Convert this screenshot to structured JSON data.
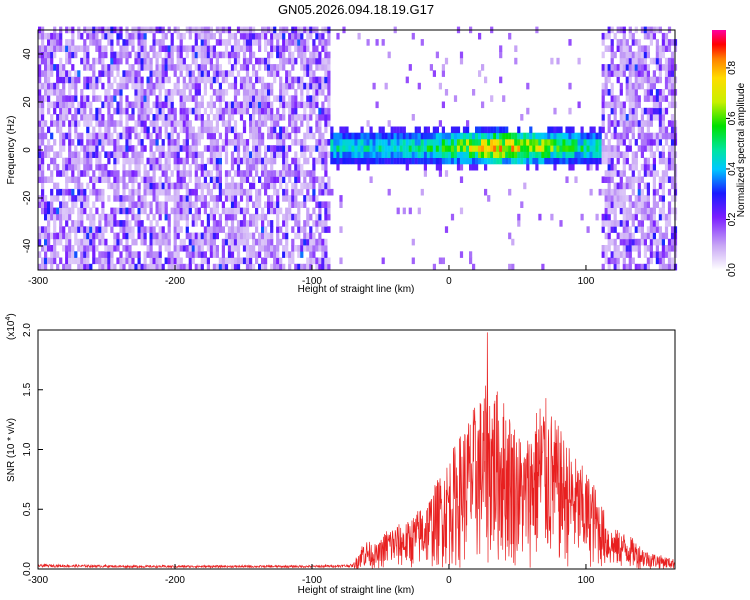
{
  "chart_data": [
    {
      "type": "heatmap",
      "title": "GN05.2026.094.18.19.G17",
      "xlabel": "Height of straight line (km)",
      "ylabel": "Frequency (Hz)",
      "xlim": [
        -300,
        165
      ],
      "ylim": [
        -50,
        50
      ],
      "xticks": [
        -300,
        -200,
        -100,
        0,
        100
      ],
      "yticks": [
        -40,
        -20,
        0,
        20,
        40
      ],
      "colorbar": {
        "label": "Normalized spectral amplitude",
        "range": [
          0,
          0.95
        ],
        "ticks": [
          0.0,
          0.2,
          0.4,
          0.6,
          0.8
        ]
      },
      "regions": [
        {
          "x_range": [
            -300,
            -87
          ],
          "description_value": "broadband noise 0.1-0.35"
        },
        {
          "x_range": [
            -87,
            110
          ],
          "band_center_hz": 0,
          "band_halfwidth_hz": 6,
          "peak_x": 40,
          "peak_value": 0.9
        },
        {
          "x_range": [
            110,
            165
          ],
          "description_value": "broadband noise 0.1-0.35"
        }
      ]
    },
    {
      "type": "line",
      "xlabel": "Height of straight line (km)",
      "ylabel": "SNR (10 * v/v)",
      "exponent_label": "(x10",
      "exponent_power": "4",
      "ylim": [
        0,
        2.0
      ],
      "xlim": [
        -300,
        165
      ],
      "xticks": [
        -300,
        -200,
        -100,
        0,
        100
      ],
      "yticks": [
        "0.0",
        "0.5",
        "1.0",
        "1.5",
        "2.0"
      ],
      "color": "#e82020",
      "envelope": [
        [
          -300,
          0.04
        ],
        [
          -230,
          0.03
        ],
        [
          -150,
          0.03
        ],
        [
          -100,
          0.03
        ],
        [
          -70,
          0.04
        ],
        [
          -62,
          0.25
        ],
        [
          -52,
          0.2
        ],
        [
          -45,
          0.35
        ],
        [
          -30,
          0.4
        ],
        [
          -15,
          0.6
        ],
        [
          0,
          0.95
        ],
        [
          15,
          1.3
        ],
        [
          30,
          1.6
        ],
        [
          42,
          1.4
        ],
        [
          55,
          1.05
        ],
        [
          68,
          1.5
        ],
        [
          80,
          1.2
        ],
        [
          92,
          0.95
        ],
        [
          105,
          0.75
        ],
        [
          118,
          0.35
        ],
        [
          130,
          0.3
        ],
        [
          145,
          0.15
        ],
        [
          165,
          0.08
        ]
      ],
      "max_value": 1.98,
      "max_x": 28
    }
  ]
}
